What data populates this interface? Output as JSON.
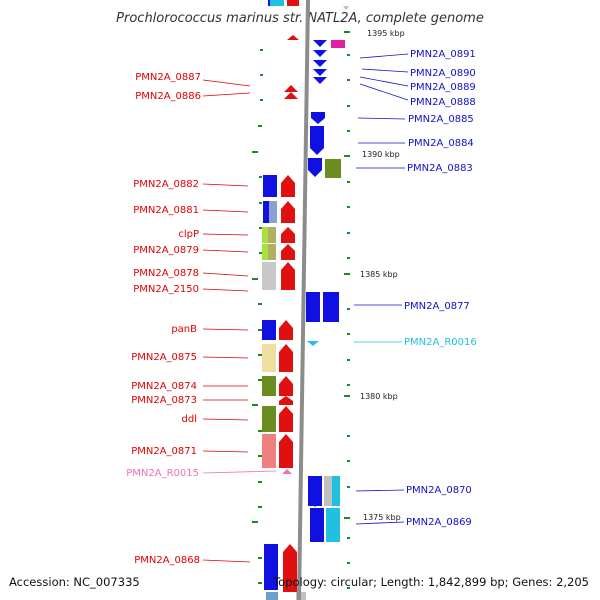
{
  "title": "Prochlorococcus marinus str. NATL2A, complete genome",
  "footer": {
    "accession": "Accession: NC_007335",
    "topology": "Topology: circular; Length: 1,842,899 bp; Genes: 2,205"
  },
  "colors": {
    "backbone": "#8c8c8c",
    "tick": "#1a8c1a",
    "left_label": "#e00000",
    "right_label": "#1010c8",
    "rna_left": "#f070b0",
    "rna_right": "#20c0e0"
  },
  "scale_labels": [
    {
      "kbp": 1395,
      "label": "1395 kbp"
    },
    {
      "kbp": 1390,
      "label": "1390 kbp"
    },
    {
      "kbp": 1385,
      "label": "1385 kbp"
    },
    {
      "kbp": 1380,
      "label": "1380 kbp"
    },
    {
      "kbp": 1375,
      "label": "1375 kbp"
    }
  ],
  "left_labels": [
    {
      "id": "PMN2A_0887",
      "text": "PMN2A_0887",
      "color": "#e00000"
    },
    {
      "id": "PMN2A_0886",
      "text": "PMN2A_0886",
      "color": "#e00000"
    },
    {
      "id": "PMN2A_0882",
      "text": "PMN2A_0882",
      "color": "#e00000"
    },
    {
      "id": "PMN2A_0881",
      "text": "PMN2A_0881",
      "color": "#e00000"
    },
    {
      "id": "clpP",
      "text": "clpP",
      "color": "#e00000"
    },
    {
      "id": "PMN2A_0879",
      "text": "PMN2A_0879",
      "color": "#e00000"
    },
    {
      "id": "PMN2A_0878",
      "text": "PMN2A_0878",
      "color": "#e00000"
    },
    {
      "id": "PMN2A_2150",
      "text": "PMN2A_2150",
      "color": "#e00000"
    },
    {
      "id": "panB",
      "text": "panB",
      "color": "#e00000"
    },
    {
      "id": "PMN2A_0875",
      "text": "PMN2A_0875",
      "color": "#e00000"
    },
    {
      "id": "PMN2A_0874",
      "text": "PMN2A_0874",
      "color": "#e00000"
    },
    {
      "id": "PMN2A_0873",
      "text": "PMN2A_0873",
      "color": "#e00000"
    },
    {
      "id": "ddl",
      "text": "ddl",
      "color": "#e00000"
    },
    {
      "id": "PMN2A_0871",
      "text": "PMN2A_0871",
      "color": "#e00000"
    },
    {
      "id": "PMN2A_R0015",
      "text": "PMN2A_R0015",
      "color": "#f070b0"
    },
    {
      "id": "PMN2A_0868",
      "text": "PMN2A_0868",
      "color": "#e00000"
    }
  ],
  "right_labels": [
    {
      "id": "PMN2A_0891",
      "text": "PMN2A_0891",
      "color": "#1010c8"
    },
    {
      "id": "PMN2A_0890",
      "text": "PMN2A_0890",
      "color": "#1010c8"
    },
    {
      "id": "PMN2A_0889",
      "text": "PMN2A_0889",
      "color": "#1010c8"
    },
    {
      "id": "PMN2A_0888",
      "text": "PMN2A_0888",
      "color": "#1010c8"
    },
    {
      "id": "PMN2A_0885",
      "text": "PMN2A_0885",
      "color": "#1010c8"
    },
    {
      "id": "PMN2A_0884",
      "text": "PMN2A_0884",
      "color": "#1010c8"
    },
    {
      "id": "PMN2A_0883",
      "text": "PMN2A_0883",
      "color": "#1010c8"
    },
    {
      "id": "PMN2A_0877",
      "text": "PMN2A_0877",
      "color": "#1010c8"
    },
    {
      "id": "PMN2A_R0016",
      "text": "PMN2A_R0016",
      "color": "#20c0e0"
    },
    {
      "id": "PMN2A_0870",
      "text": "PMN2A_0870",
      "color": "#1010c8"
    },
    {
      "id": "PMN2A_0869",
      "text": "PMN2A_0869",
      "color": "#1010c8"
    }
  ]
}
